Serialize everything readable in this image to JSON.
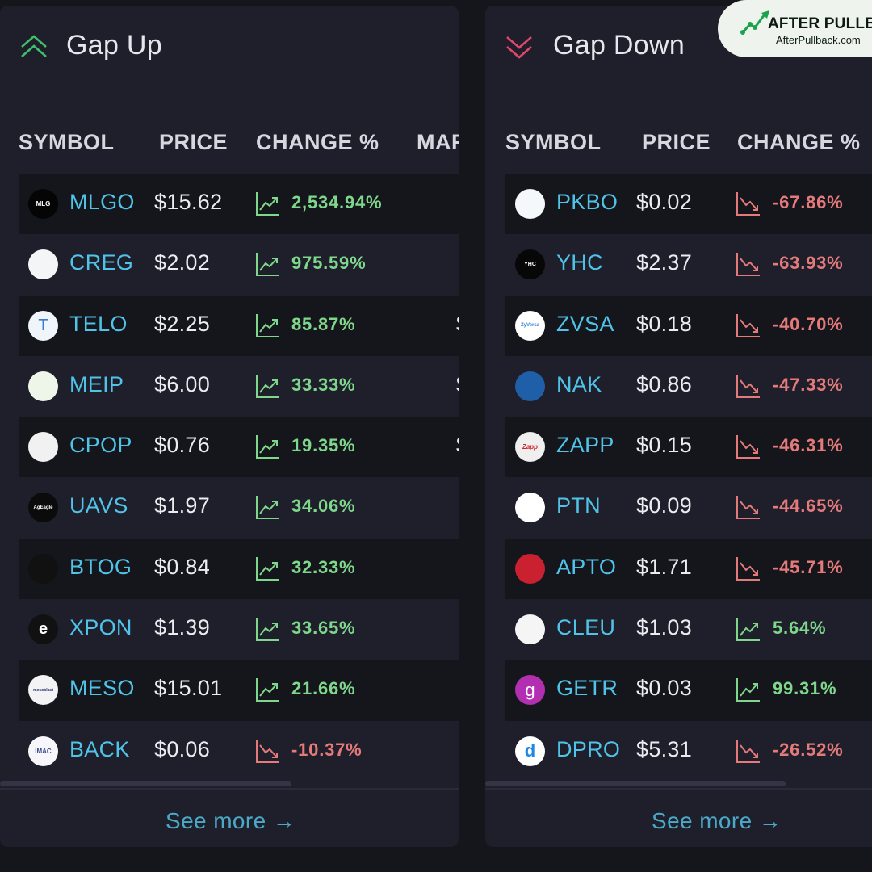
{
  "colors": {
    "up": "#7fd78c",
    "down": "#e57a7a",
    "symbol": "#4fc3e8"
  },
  "brand": {
    "name": "AFTER PULLBACK",
    "url": "AfterPullback.com",
    "icon": "trend-line-icon"
  },
  "gap_up": {
    "title": "Gap Up",
    "icon": "double-chevron-up-icon",
    "headers": {
      "symbol": "SYMBOL",
      "price": "PRICE",
      "change": "CHANGE %",
      "extra": "MAR"
    },
    "rows": [
      {
        "symbol": "MLGO",
        "price": "$15.62",
        "change": "2,534.94%",
        "dir": "up",
        "logo_text": "MLG",
        "extra": ""
      },
      {
        "symbol": "CREG",
        "price": "$2.02",
        "change": "975.59%",
        "dir": "up",
        "logo_text": "",
        "extra": ""
      },
      {
        "symbol": "TELO",
        "price": "$2.25",
        "change": "85.87%",
        "dir": "up",
        "logo_text": "T",
        "extra": "S"
      },
      {
        "symbol": "MEIP",
        "price": "$6.00",
        "change": "33.33%",
        "dir": "up",
        "logo_text": "",
        "extra": "S"
      },
      {
        "symbol": "CPOP",
        "price": "$0.76",
        "change": "19.35%",
        "dir": "up",
        "logo_text": "",
        "extra": "S"
      },
      {
        "symbol": "UAVS",
        "price": "$1.97",
        "change": "34.06%",
        "dir": "up",
        "logo_text": "AgEagle",
        "extra": ""
      },
      {
        "symbol": "BTOG",
        "price": "$0.84",
        "change": "32.33%",
        "dir": "up",
        "logo_text": "",
        "extra": ""
      },
      {
        "symbol": "XPON",
        "price": "$1.39",
        "change": "33.65%",
        "dir": "up",
        "logo_text": "e",
        "extra": ""
      },
      {
        "symbol": "MESO",
        "price": "$15.01",
        "change": "21.66%",
        "dir": "up",
        "logo_text": "mesoblast",
        "extra": ""
      },
      {
        "symbol": "BACK",
        "price": "$0.06",
        "change": "-10.37%",
        "dir": "down",
        "logo_text": "IMAC",
        "extra": ""
      }
    ],
    "see_more": "See more →"
  },
  "gap_down": {
    "title": "Gap Down",
    "icon": "double-chevron-down-icon",
    "headers": {
      "symbol": "SYMBOL",
      "price": "PRICE",
      "change": "CHANGE %"
    },
    "rows": [
      {
        "symbol": "PKBO",
        "price": "$0.02",
        "change": "-67.86%",
        "dir": "down",
        "logo_text": ""
      },
      {
        "symbol": "YHC",
        "price": "$2.37",
        "change": "-63.93%",
        "dir": "down",
        "logo_text": "YHC"
      },
      {
        "symbol": "ZVSA",
        "price": "$0.18",
        "change": "-40.70%",
        "dir": "down",
        "logo_text": "ZyVersa"
      },
      {
        "symbol": "NAK",
        "price": "$0.86",
        "change": "-47.33%",
        "dir": "down",
        "logo_text": ""
      },
      {
        "symbol": "ZAPP",
        "price": "$0.15",
        "change": "-46.31%",
        "dir": "down",
        "logo_text": "Zapp"
      },
      {
        "symbol": "PTN",
        "price": "$0.09",
        "change": "-44.65%",
        "dir": "down",
        "logo_text": ""
      },
      {
        "symbol": "APTO",
        "price": "$1.71",
        "change": "-45.71%",
        "dir": "down",
        "logo_text": ""
      },
      {
        "symbol": "CLEU",
        "price": "$1.03",
        "change": "5.64%",
        "dir": "up",
        "logo_text": ""
      },
      {
        "symbol": "GETR",
        "price": "$0.03",
        "change": "99.31%",
        "dir": "up",
        "logo_text": "g"
      },
      {
        "symbol": "DPRO",
        "price": "$5.31",
        "change": "-26.52%",
        "dir": "down",
        "logo_text": "d"
      }
    ],
    "see_more": "See more →"
  }
}
